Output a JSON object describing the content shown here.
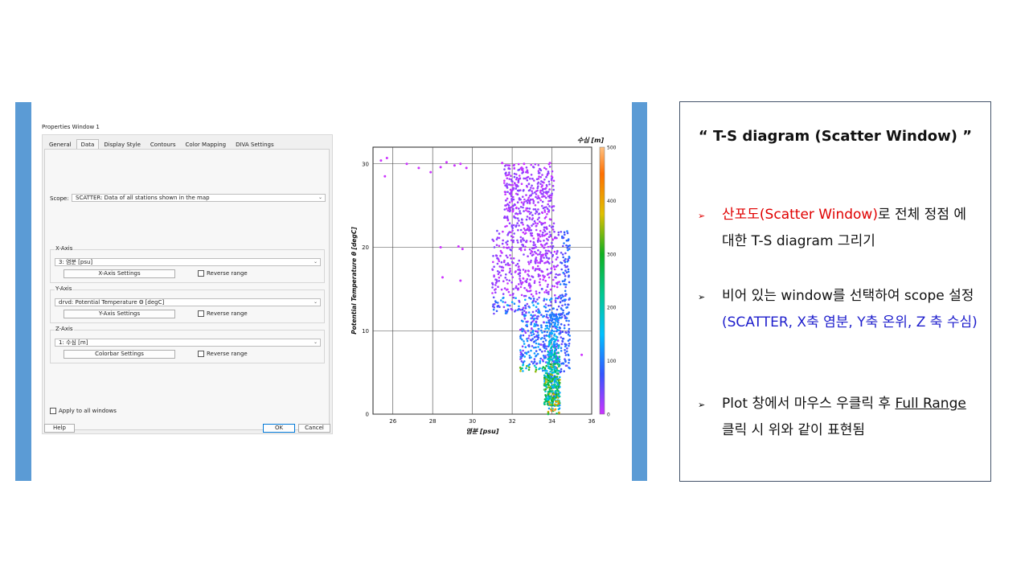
{
  "properties_window": {
    "title": "Properties Window 1",
    "tabs": [
      "General",
      "Data",
      "Display Style",
      "Contours",
      "Color Mapping",
      "DIVA Settings"
    ],
    "active_tab": "Data",
    "scope_label": "Scope:",
    "scope_value": "SCATTER: Data of all stations shown in the map",
    "x_axis": {
      "label": "X-Axis",
      "value": "3: 염분 [psu]",
      "settings": "X-Axis Settings",
      "reverse": "Reverse range"
    },
    "y_axis": {
      "label": "Y-Axis",
      "value": "drvd: Potential Temperature Θ [degC]",
      "settings": "Y-Axis Settings",
      "reverse": "Reverse range"
    },
    "z_axis": {
      "label": "Z-Axis",
      "value": "1: 수심 [m]",
      "settings": "Colorbar Settings",
      "reverse": "Reverse range"
    },
    "apply_all": "Apply to all windows",
    "help": "Help",
    "ok": "OK",
    "cancel": "Cancel"
  },
  "chart_data": {
    "type": "scatter",
    "title": "",
    "xlabel": "염분 [psu]",
    "ylabel": "Potential Temperature θ [degC]",
    "colorbar_label": "수심 [m]",
    "xlim": [
      25,
      36
    ],
    "ylim": [
      0,
      32
    ],
    "xticks": [
      26,
      28,
      30,
      32,
      34,
      36
    ],
    "yticks": [
      0,
      10,
      20,
      30
    ],
    "colorbar_ticks": [
      0,
      100,
      200,
      300,
      400,
      500
    ],
    "colorbar_range": [
      0,
      500
    ],
    "grid": true,
    "points_approx": [
      {
        "x": 25.4,
        "y": 30.4,
        "z": 0
      },
      {
        "x": 25.7,
        "y": 30.7,
        "z": 0
      },
      {
        "x": 25.6,
        "y": 28.5,
        "z": 0
      },
      {
        "x": 26.7,
        "y": 30.0,
        "z": 0
      },
      {
        "x": 27.3,
        "y": 29.5,
        "z": 0
      },
      {
        "x": 27.9,
        "y": 29.0,
        "z": 0
      },
      {
        "x": 28.4,
        "y": 29.6,
        "z": 0
      },
      {
        "x": 28.7,
        "y": 30.2,
        "z": 0
      },
      {
        "x": 29.1,
        "y": 29.8,
        "z": 0
      },
      {
        "x": 29.4,
        "y": 30.0,
        "z": 0
      },
      {
        "x": 29.7,
        "y": 29.5,
        "z": 0
      },
      {
        "x": 28.4,
        "y": 20.0,
        "z": 0
      },
      {
        "x": 29.3,
        "y": 20.1,
        "z": 0
      },
      {
        "x": 29.5,
        "y": 19.8,
        "z": 0
      },
      {
        "x": 28.5,
        "y": 16.4,
        "z": 0
      },
      {
        "x": 29.4,
        "y": 16.0,
        "z": 0
      },
      {
        "x": 35.5,
        "y": 7.1,
        "z": 0
      },
      {
        "x": 31.5,
        "y": 30.1,
        "z": 0
      },
      {
        "x": 32.6,
        "y": 30.0,
        "z": 0
      },
      {
        "x": 33.9,
        "y": 30.1,
        "z": 0
      },
      {
        "x": 32.0,
        "y": 20.0,
        "z": 20
      },
      {
        "x": 33.5,
        "y": 15.0,
        "z": 50
      },
      {
        "x": 34.0,
        "y": 10.0,
        "z": 110
      },
      {
        "x": 34.1,
        "y": 5.0,
        "z": 160
      },
      {
        "x": 34.2,
        "y": 2.0,
        "z": 260
      },
      {
        "x": 34.1,
        "y": 0.5,
        "z": 480
      }
    ]
  },
  "note": {
    "title": "“  T-S diagram (Scatter Window) ”",
    "bullet_symbol": "➢",
    "b1_red": "산포도(Scatter Window)",
    "b1_rest": "로 전체 정점 에 대한 T-S diagram 그리기",
    "b2_plain": "비어 있는 window를 선택하여 scope 설정",
    "b2_blue": "(SCATTER, X축 염분, Y축 온위, Z 축 수심)",
    "b3_a": "Plot 창에서 마우스 우클릭 후 ",
    "b3_u": "Full Range",
    "b3_b": " 클릭 시 위와 같이 표현됨"
  },
  "colors": {
    "accent_bar": "#5b9bd5",
    "red": "#e00000",
    "blue": "#1d1dcc",
    "box_border": "#44546a"
  }
}
